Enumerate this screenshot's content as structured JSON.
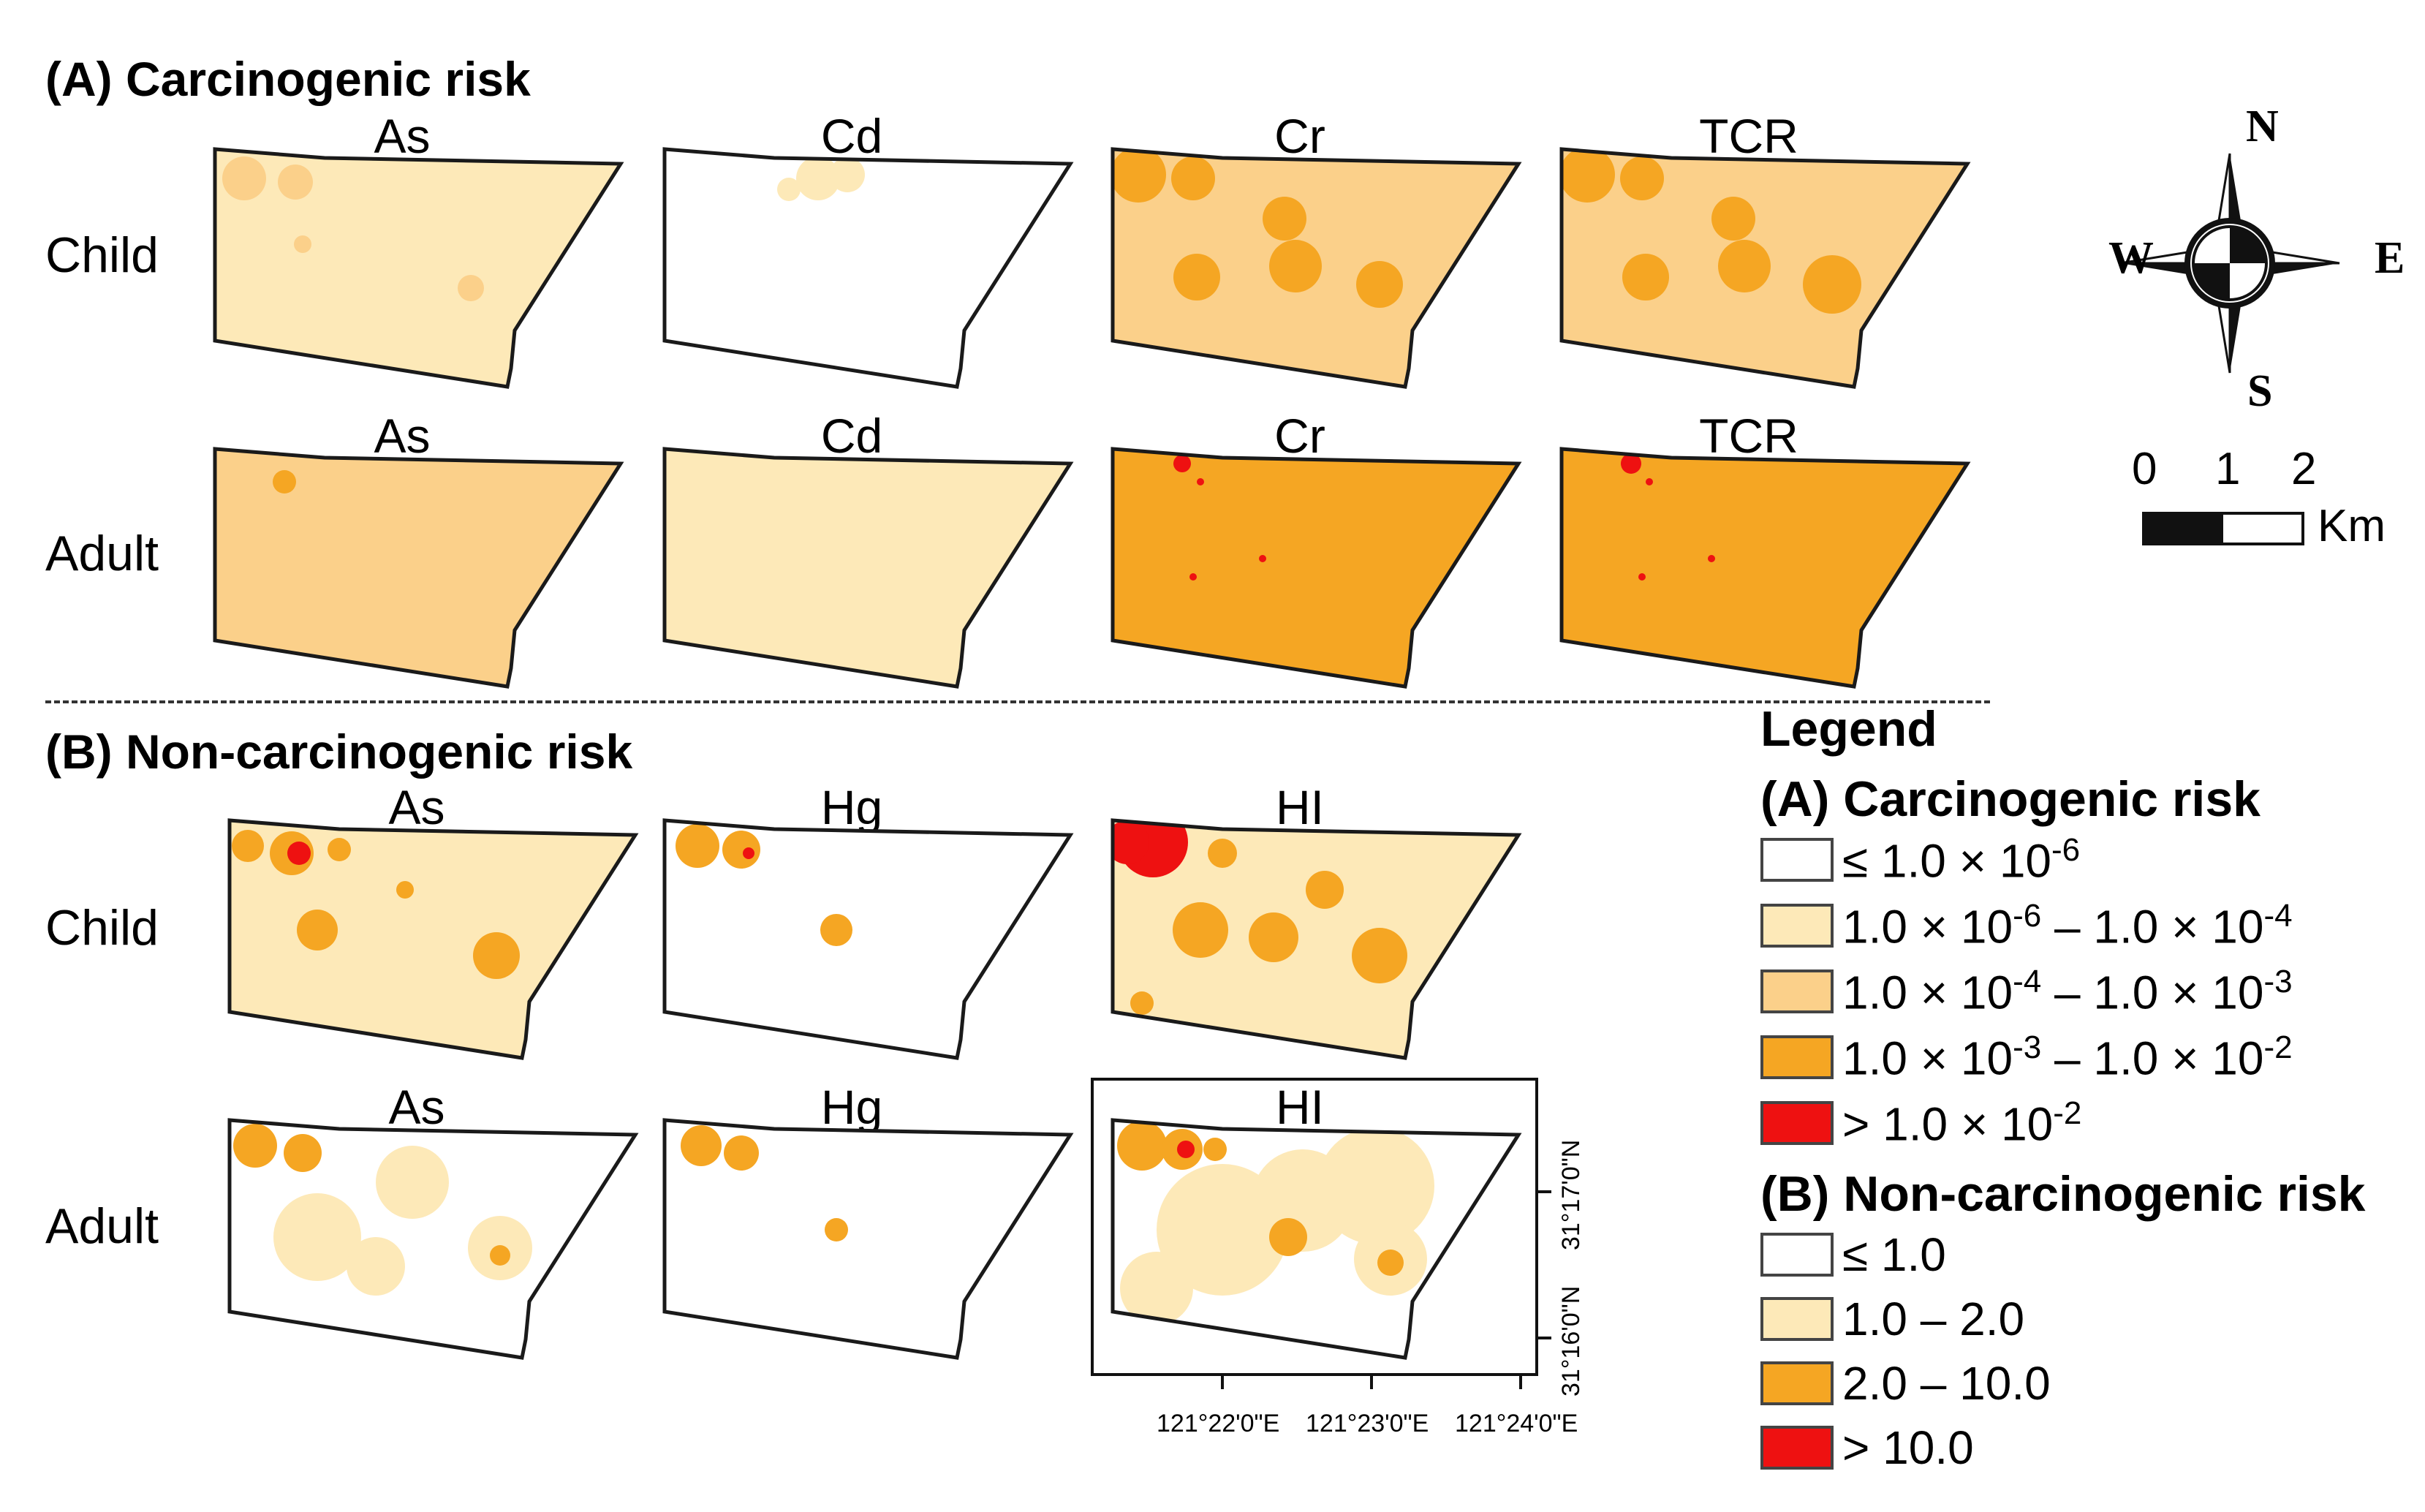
{
  "colors": {
    "white": "#ffffff",
    "light": "#fde9b8",
    "medium": "#fbd08a",
    "orange": "#f5a623",
    "red": "#ee1111",
    "outline": "#1a1a1a"
  },
  "section_a": {
    "title": "(A) Carcinogenic risk",
    "row_labels": [
      "Child",
      "Adult"
    ],
    "maps": [
      {
        "title": "As",
        "row": 0,
        "col": 0,
        "base": "light",
        "hotspots": "as_child_a"
      },
      {
        "title": "Cd",
        "row": 0,
        "col": 1,
        "base": "white",
        "hotspots": "cd_child"
      },
      {
        "title": "Cr",
        "row": 0,
        "col": 2,
        "base": "medium",
        "hotspots": "cr_child"
      },
      {
        "title": "TCR",
        "row": 0,
        "col": 3,
        "base": "medium",
        "hotspots": "tcr_child"
      },
      {
        "title": "As",
        "row": 1,
        "col": 0,
        "base": "medium",
        "hotspots": "as_adult_a"
      },
      {
        "title": "Cd",
        "row": 1,
        "col": 1,
        "base": "light",
        "hotspots": "cd_adult"
      },
      {
        "title": "Cr",
        "row": 1,
        "col": 2,
        "base": "orange",
        "hotspots": "cr_adult"
      },
      {
        "title": "TCR",
        "row": 1,
        "col": 3,
        "base": "orange",
        "hotspots": "tcr_adult"
      }
    ]
  },
  "section_b": {
    "title": "(B) Non-carcinogenic risk",
    "row_labels": [
      "Child",
      "Adult"
    ],
    "maps": [
      {
        "title": "As",
        "row": 0,
        "col": 0,
        "base": "light",
        "hotspots": "as_child_b"
      },
      {
        "title": "Hg",
        "row": 0,
        "col": 1,
        "base": "white",
        "hotspots": "hg_child"
      },
      {
        "title": "HI",
        "row": 0,
        "col": 2,
        "base": "light",
        "hotspots": "hi_child"
      },
      {
        "title": "As",
        "row": 1,
        "col": 0,
        "base": "white",
        "hotspots": "as_adult_b"
      },
      {
        "title": "Hg",
        "row": 1,
        "col": 1,
        "base": "white",
        "hotspots": "hg_adult"
      },
      {
        "title": "HI",
        "row": 1,
        "col": 2,
        "base": "white",
        "hotspots": "hi_adult"
      }
    ],
    "grid": {
      "lon_ticks": [
        "121°22'0\"E",
        "121°23'0\"E",
        "121°24'0\"E"
      ],
      "lat_ticks": [
        "31°17'0\"N",
        "31°16'0\"N"
      ]
    }
  },
  "compass": {
    "n": "N",
    "s": "S",
    "e": "E",
    "w": "W"
  },
  "scale_bar": {
    "labels": [
      "0",
      "1",
      "2"
    ],
    "unit": "Km"
  },
  "legend": {
    "title": "Legend",
    "group_a": {
      "title": "(A) Carcinogenic risk",
      "items": [
        {
          "color": "white",
          "pre": "≤ 1.0 × 10",
          "sup": "-6",
          "mid": "",
          "sup2": ""
        },
        {
          "color": "light",
          "pre": "1.0 × 10",
          "sup": "-6",
          "mid": " – 1.0 × 10",
          "sup2": "-4"
        },
        {
          "color": "medium",
          "pre": "1.0 × 10",
          "sup": "-4",
          "mid": " – 1.0 × 10",
          "sup2": "-3"
        },
        {
          "color": "orange",
          "pre": "1.0 × 10",
          "sup": "-3",
          "mid": " – 1.0 × 10",
          "sup2": "-2"
        },
        {
          "color": "red",
          "pre": "> 1.0 × 10",
          "sup": "-2",
          "mid": "",
          "sup2": ""
        }
      ]
    },
    "group_b": {
      "title": "(B) Non-carcinogenic risk",
      "items": [
        {
          "color": "white",
          "label": "≤ 1.0"
        },
        {
          "color": "light",
          "label": "1.0 – 2.0"
        },
        {
          "color": "orange",
          "label": "2.0 – 10.0"
        },
        {
          "color": "red",
          "label": "> 10.0"
        }
      ]
    }
  }
}
